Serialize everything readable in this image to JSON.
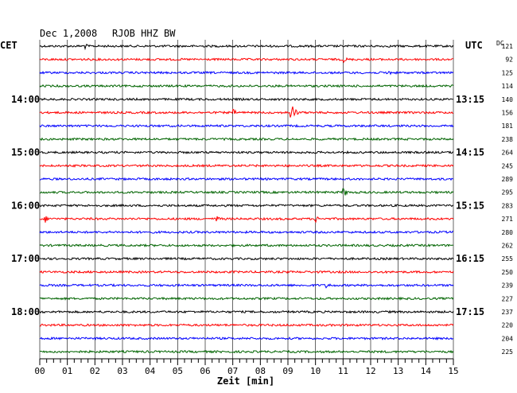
{
  "header": {
    "date": "Dec 1,2008",
    "station": "RJOB HHZ BW",
    "left_zone": "CET",
    "right_zone": "UTC",
    "dc_label": "DC"
  },
  "chart_data": {
    "type": "line",
    "title": "Dec 1,2008   RJOB HHZ BW",
    "xlabel": "Zeit [min]",
    "x_ticks": [
      "00",
      "01",
      "02",
      "03",
      "04",
      "05",
      "06",
      "07",
      "08",
      "09",
      "10",
      "11",
      "12",
      "13",
      "14",
      "15"
    ],
    "xlim": [
      0,
      15
    ],
    "grid": true,
    "trace_colors": [
      "#000000",
      "#ff0000",
      "#0000ff",
      "#006400"
    ],
    "left_hour_labels": [
      {
        "trace": 4,
        "label": "14:00"
      },
      {
        "trace": 8,
        "label": "15:00"
      },
      {
        "trace": 12,
        "label": "16:00"
      },
      {
        "trace": 16,
        "label": "17:00"
      },
      {
        "trace": 20,
        "label": "18:00"
      }
    ],
    "right_utc_labels": [
      {
        "trace": 4,
        "label": "13:15"
      },
      {
        "trace": 8,
        "label": "14:15"
      },
      {
        "trace": 12,
        "label": "15:15"
      },
      {
        "trace": 16,
        "label": "16:15"
      },
      {
        "trace": 20,
        "label": "17:15"
      }
    ],
    "dc_offsets": [
      "121",
      "92",
      "125",
      "114",
      "140",
      "156",
      "181",
      "238",
      "264",
      "245",
      "289",
      "295",
      "283",
      "271",
      "280",
      "262",
      "255",
      "250",
      "239",
      "227",
      "237",
      "220",
      "204",
      "225"
    ],
    "events": [
      {
        "trace": 0,
        "minute": 1.6,
        "amplitude": "small"
      },
      {
        "trace": 1,
        "minute": 11.0,
        "amplitude": "small"
      },
      {
        "trace": 2,
        "minute": 12.6,
        "amplitude": "small"
      },
      {
        "trace": 5,
        "minute": 9.1,
        "amplitude": "large"
      },
      {
        "trace": 5,
        "minute": 7.0,
        "amplitude": "small"
      },
      {
        "trace": 11,
        "minute": 11.0,
        "amplitude": "medium"
      },
      {
        "trace": 13,
        "minute": 0.2,
        "amplitude": "small"
      },
      {
        "trace": 13,
        "minute": 6.4,
        "amplitude": "small"
      },
      {
        "trace": 13,
        "minute": 10.0,
        "amplitude": "small"
      },
      {
        "trace": 18,
        "minute": 10.4,
        "amplitude": "small"
      }
    ]
  }
}
